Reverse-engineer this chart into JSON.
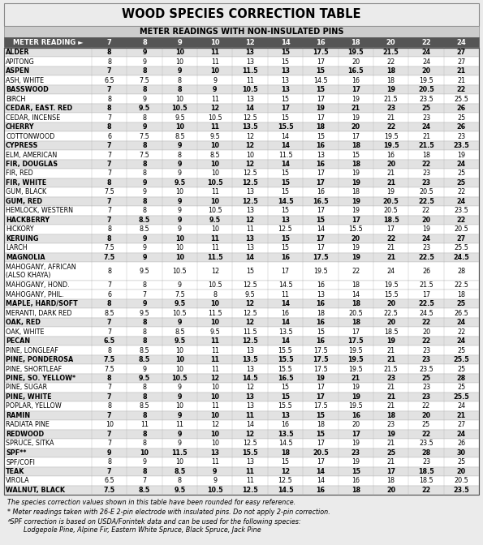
{
  "title": "WOOD SPECIES CORRECTION TABLE",
  "subtitle": "METER READINGS WITH NON-INSULATED PINS",
  "columns": [
    "METER READING ►",
    "7",
    "8",
    "9",
    "10",
    "12",
    "14",
    "16",
    "18",
    "20",
    "22",
    "24"
  ],
  "rows": [
    [
      "ALDER",
      "8",
      "9",
      "10",
      "11",
      "13",
      "15",
      "17.5",
      "19.5",
      "21.5",
      "24",
      "27"
    ],
    [
      "APITONG",
      "8",
      "9",
      "10",
      "11",
      "13",
      "15",
      "17",
      "20",
      "22",
      "24",
      "27"
    ],
    [
      "ASPEN",
      "7",
      "8",
      "9",
      "10",
      "11.5",
      "13",
      "15",
      "16.5",
      "18",
      "20",
      "21"
    ],
    [
      "ASH, WHITE",
      "6.5",
      "7.5",
      "8",
      "9",
      "11",
      "13",
      "14.5",
      "16",
      "18",
      "19.5",
      "21"
    ],
    [
      "BASSWOOD",
      "7",
      "8",
      "8",
      "9",
      "10.5",
      "13",
      "15",
      "17",
      "19",
      "20.5",
      "22"
    ],
    [
      "BIRCH",
      "8",
      "9",
      "10",
      "11",
      "13",
      "15",
      "17",
      "19",
      "21.5",
      "23.5",
      "25.5"
    ],
    [
      "CEDAR, EAST. RED",
      "8",
      "9.5",
      "10.5",
      "12",
      "14",
      "17",
      "19",
      "21",
      "23",
      "25",
      "26"
    ],
    [
      "CEDAR, INCENSE",
      "7",
      "8",
      "9.5",
      "10.5",
      "12.5",
      "15",
      "17",
      "19",
      "21",
      "23",
      "25"
    ],
    [
      "CHERRY",
      "8",
      "9",
      "10",
      "11",
      "13.5",
      "15.5",
      "18",
      "20",
      "22",
      "24",
      "26"
    ],
    [
      "COTTONWOOD",
      "6",
      "7.5",
      "8.5",
      "9.5",
      "12",
      "14",
      "15",
      "17",
      "19.5",
      "21",
      "23"
    ],
    [
      "CYPRESS",
      "7",
      "8",
      "9",
      "10",
      "12",
      "14",
      "16",
      "18",
      "19.5",
      "21.5",
      "23.5"
    ],
    [
      "ELM, AMERICAN",
      "7",
      "7.5",
      "8",
      "8.5",
      "10",
      "11.5",
      "13",
      "15",
      "16",
      "18",
      "19"
    ],
    [
      "FIR, DOUGLAS",
      "7",
      "8",
      "9",
      "10",
      "12",
      "14",
      "16",
      "18",
      "20",
      "22",
      "24"
    ],
    [
      "FIR, RED",
      "7",
      "8",
      "9",
      "10",
      "12.5",
      "15",
      "17",
      "19",
      "21",
      "23",
      "25"
    ],
    [
      "FIR, WHITE",
      "8",
      "9",
      "9.5",
      "10.5",
      "12.5",
      "15",
      "17",
      "19",
      "21",
      "23",
      "25"
    ],
    [
      "GUM, BLACK",
      "7.5",
      "9",
      "10",
      "11",
      "13",
      "15",
      "16",
      "18",
      "19",
      "20.5",
      "22"
    ],
    [
      "GUM, RED",
      "7",
      "8",
      "9",
      "10",
      "12.5",
      "14.5",
      "16.5",
      "19",
      "20.5",
      "22.5",
      "24"
    ],
    [
      "HEMLOCK, WESTERN",
      "7",
      "8",
      "9",
      "10.5",
      "13",
      "15",
      "17",
      "19",
      "20.5",
      "22",
      "23.5"
    ],
    [
      "HACKBERRY",
      "7",
      "8.5",
      "9",
      "9.5",
      "12",
      "13",
      "15",
      "17",
      "18.5",
      "20",
      "22"
    ],
    [
      "HICKORY",
      "8",
      "8.5",
      "9",
      "10",
      "11",
      "12.5",
      "14",
      "15.5",
      "17",
      "19",
      "20.5"
    ],
    [
      "KERUING",
      "8",
      "9",
      "10",
      "11",
      "13",
      "15",
      "17",
      "20",
      "22",
      "24",
      "27"
    ],
    [
      "LARCH",
      "7.5",
      "9",
      "10",
      "11",
      "13",
      "15",
      "17",
      "19",
      "21",
      "23",
      "25.5"
    ],
    [
      "MAGNOLIA",
      "7.5",
      "9",
      "10",
      "11.5",
      "14",
      "16",
      "17.5",
      "19",
      "21",
      "22.5",
      "24.5"
    ],
    [
      "MAHOGANY, AFRICAN\n(ALSO KHAYA)",
      "8",
      "9.5",
      "10.5",
      "12",
      "15",
      "17",
      "19.5",
      "22",
      "24",
      "26",
      "28"
    ],
    [
      "MAHOGANY, HOND.",
      "7",
      "8",
      "9",
      "10.5",
      "12.5",
      "14.5",
      "16",
      "18",
      "19.5",
      "21.5",
      "22.5"
    ],
    [
      "MAHOGANY, PHIL.",
      "6",
      "7",
      "7.5",
      "8",
      "9.5",
      "11",
      "13",
      "14",
      "15.5",
      "17",
      "18"
    ],
    [
      "MAPLE, HARD/SOFT",
      "8",
      "9",
      "9.5",
      "10",
      "12",
      "14",
      "16",
      "18",
      "20",
      "22.5",
      "25"
    ],
    [
      "MERANTI, DARK RED",
      "8.5",
      "9.5",
      "10.5",
      "11.5",
      "12.5",
      "16",
      "18",
      "20.5",
      "22.5",
      "24.5",
      "26.5"
    ],
    [
      "OAK, RED",
      "7",
      "8",
      "9",
      "10",
      "12",
      "14",
      "16",
      "18",
      "20",
      "22",
      "24"
    ],
    [
      "OAK, WHITE",
      "7",
      "8",
      "8.5",
      "9.5",
      "11.5",
      "13.5",
      "15",
      "17",
      "18.5",
      "20",
      "22"
    ],
    [
      "PECAN",
      "6.5",
      "8",
      "9.5",
      "11",
      "12.5",
      "14",
      "16",
      "17.5",
      "19",
      "22",
      "24"
    ],
    [
      "PINE, LONGLEAF",
      "8",
      "8.5",
      "10",
      "11",
      "13",
      "15.5",
      "17.5",
      "19.5",
      "21",
      "23",
      "25"
    ],
    [
      "PINE, PONDEROSA",
      "7.5",
      "8.5",
      "10",
      "11",
      "13.5",
      "15.5",
      "17.5",
      "19.5",
      "21",
      "23",
      "25.5"
    ],
    [
      "PINE, SHORTLEAF",
      "7.5",
      "9",
      "10",
      "11",
      "13",
      "15.5",
      "17.5",
      "19.5",
      "21.5",
      "23.5",
      "25"
    ],
    [
      "PINE, SO. YELLOW*",
      "8",
      "9.5",
      "10.5",
      "12",
      "14.5",
      "16.5",
      "19",
      "21",
      "23",
      "25",
      "28"
    ],
    [
      "PINE, SUGAR",
      "7",
      "8",
      "9",
      "10",
      "12",
      "15",
      "17",
      "19",
      "21",
      "23",
      "25"
    ],
    [
      "PINE, WHITE",
      "7",
      "8",
      "9",
      "10",
      "13",
      "15",
      "17",
      "19",
      "21",
      "23",
      "25.5"
    ],
    [
      "POPLAR, YELLOW",
      "8",
      "8.5",
      "10",
      "11",
      "13",
      "15.5",
      "17.5",
      "19.5",
      "21",
      "22",
      "24"
    ],
    [
      "RAMIN",
      "7",
      "8",
      "9",
      "10",
      "11",
      "13",
      "15",
      "16",
      "18",
      "20",
      "21"
    ],
    [
      "RADIATA PINE",
      "10",
      "11",
      "11",
      "12",
      "14",
      "16",
      "18",
      "20",
      "23",
      "25",
      "27"
    ],
    [
      "REDWOOD",
      "7",
      "8",
      "9",
      "10",
      "12",
      "13.5",
      "15",
      "17",
      "19",
      "22",
      "24"
    ],
    [
      "SPRUCE, SITKA",
      "7",
      "8",
      "9",
      "10",
      "12.5",
      "14.5",
      "17",
      "19",
      "21",
      "23.5",
      "26"
    ],
    [
      "SPF**",
      "9",
      "10",
      "11.5",
      "13",
      "15.5",
      "18",
      "20.5",
      "23",
      "25",
      "28",
      "30"
    ],
    [
      "SPF/COFI",
      "8",
      "9",
      "10",
      "11",
      "13",
      "15",
      "17",
      "19",
      "21",
      "23",
      "25"
    ],
    [
      "TEAK",
      "7",
      "8",
      "8.5",
      "9",
      "11",
      "12",
      "14",
      "15",
      "17",
      "18.5",
      "20"
    ],
    [
      "VIROLA",
      "6.5",
      "7",
      "8",
      "9",
      "11",
      "12.5",
      "14",
      "16",
      "18",
      "18.5",
      "20.5"
    ],
    [
      "WALNUT, BLACK",
      "7.5",
      "8.5",
      "9.5",
      "10.5",
      "12.5",
      "14.5",
      "16",
      "18",
      "20",
      "22",
      "23.5"
    ]
  ],
  "bold_rows": [
    "ALDER",
    "ASPEN",
    "BASSWOOD",
    "CEDAR, EAST. RED",
    "CHERRY",
    "CYPRESS",
    "FIR, DOUGLAS",
    "FIR, WHITE",
    "GUM, RED",
    "HACKBERRY",
    "KERUING",
    "MAGNOLIA",
    "MAPLE, HARD/SOFT",
    "OAK, RED",
    "PECAN",
    "PINE, PONDEROSA",
    "PINE, SO. YELLOW*",
    "PINE, WHITE",
    "RAMIN",
    "REDWOOD",
    "SPF**",
    "TEAK",
    "WALNUT, BLACK"
  ],
  "footnote1": "The species correction values shown in this table have been rounded for easy reference.",
  "footnote2": "* Meter readings taken with 26-E 2-pin electrode with insulated pins. Do not apply 2-pin correction.",
  "footnote3": "ᴬSPF correction is based on USDA/Forintek data and can be used for the following species:",
  "footnote4": "        Lodgepole Pine, Alpine Fir, Eastern White Spruce, Black Spruce, Jack Pine"
}
